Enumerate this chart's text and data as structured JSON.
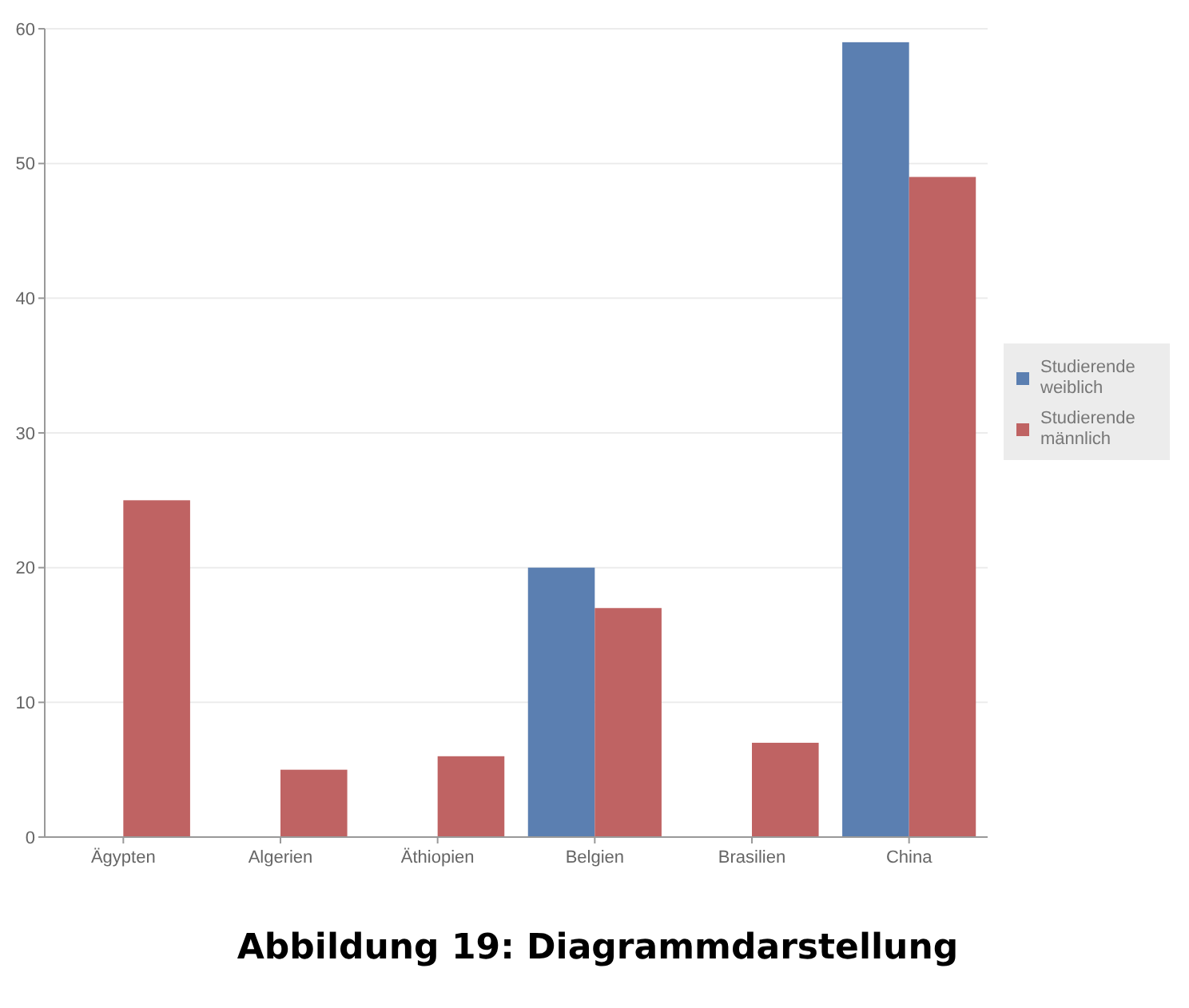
{
  "chart_data": {
    "type": "bar",
    "categories": [
      "Ägypten",
      "Algerien",
      "Äthiopien",
      "Belgien",
      "Brasilien",
      "China"
    ],
    "series": [
      {
        "name": "Studierende weiblich",
        "color": "#5b7fb1",
        "values": [
          null,
          null,
          null,
          20,
          null,
          59
        ]
      },
      {
        "name": "Studierende männlich",
        "color": "#bf6363",
        "values": [
          25,
          5,
          6,
          17,
          7,
          49
        ]
      }
    ],
    "ylim": [
      0,
      60
    ],
    "yticks": [
      0,
      10,
      20,
      30,
      40,
      50,
      60
    ],
    "grid": "y",
    "legend": "right",
    "annotations": [
      "Abbildung 19: Diagrammdarstellung"
    ]
  }
}
